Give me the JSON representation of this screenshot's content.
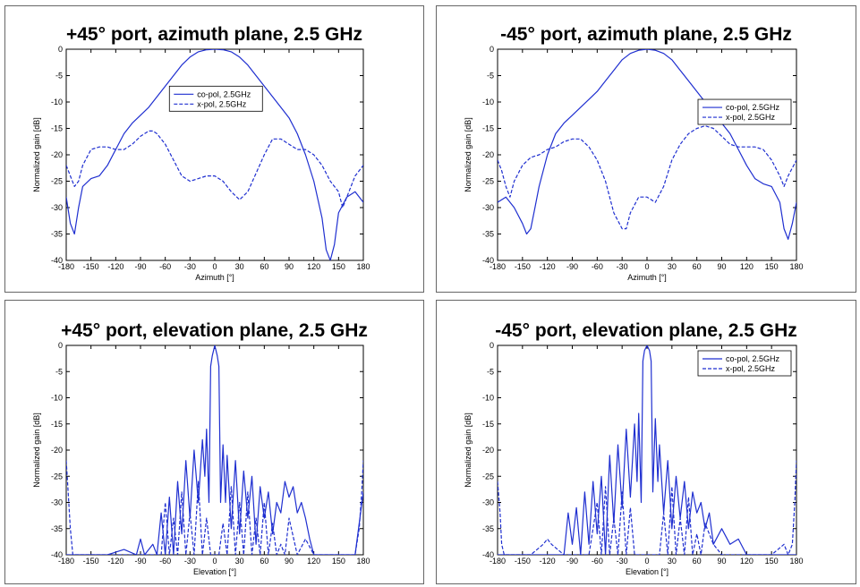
{
  "colors": {
    "series": "#1f2fd0",
    "axis": "#000000",
    "panel_border": "#666666"
  },
  "chart_data": [
    {
      "type": "line",
      "title": "+45° port, azimuth plane, 2.5 GHz",
      "xlabel": "Azimuth [°]",
      "ylabel": "Normalized gain [dB]",
      "xlim": [
        -180,
        180
      ],
      "ylim": [
        -40,
        0
      ],
      "xticks": [
        -180,
        -150,
        -120,
        -90,
        -60,
        -30,
        0,
        30,
        60,
        90,
        120,
        150,
        180
      ],
      "yticks": [
        0,
        -5,
        -10,
        -15,
        -20,
        -25,
        -30,
        -35,
        -40
      ],
      "legend": "upper-center",
      "series": [
        {
          "name": "co-pol, 2.5GHz",
          "style": "solid",
          "x": [
            -180,
            -175,
            -170,
            -165,
            -160,
            -150,
            -140,
            -130,
            -120,
            -110,
            -100,
            -90,
            -80,
            -70,
            -60,
            -50,
            -40,
            -30,
            -20,
            -10,
            0,
            10,
            20,
            30,
            40,
            50,
            60,
            70,
            80,
            90,
            100,
            110,
            120,
            130,
            135,
            140,
            145,
            150,
            160,
            170,
            180
          ],
          "y": [
            -28,
            -33,
            -35,
            -30,
            -26,
            -24.5,
            -24,
            -22,
            -19,
            -16,
            -14,
            -12.5,
            -11,
            -9,
            -7,
            -5,
            -3,
            -1.5,
            -0.5,
            -0.1,
            0,
            -0.1,
            -0.5,
            -1.5,
            -3,
            -5,
            -7,
            -9,
            -11,
            -13,
            -16,
            -20,
            -25,
            -32,
            -38,
            -40,
            -37,
            -31,
            -28,
            -27,
            -29
          ]
        },
        {
          "name": "x-pol, 2.5GHz",
          "style": "dashed",
          "x": [
            -180,
            -175,
            -170,
            -165,
            -160,
            -150,
            -140,
            -130,
            -120,
            -110,
            -100,
            -90,
            -80,
            -75,
            -70,
            -60,
            -50,
            -40,
            -30,
            -20,
            -10,
            0,
            10,
            20,
            30,
            40,
            50,
            60,
            70,
            80,
            90,
            100,
            110,
            120,
            130,
            140,
            150,
            155,
            160,
            170,
            180
          ],
          "y": [
            -22,
            -24,
            -26,
            -25,
            -22,
            -19,
            -18.5,
            -18.5,
            -19,
            -19,
            -18,
            -16.5,
            -15.5,
            -15.5,
            -16,
            -18,
            -21,
            -24,
            -25,
            -24.5,
            -24,
            -24,
            -25,
            -27,
            -28.5,
            -27,
            -23.5,
            -20,
            -17,
            -17,
            -18,
            -19,
            -19,
            -20,
            -22,
            -25,
            -27,
            -30,
            -28,
            -24,
            -22
          ]
        }
      ]
    },
    {
      "type": "line",
      "title": "-45° port, azimuth plane, 2.5 GHz",
      "xlabel": "Azimuth [°]",
      "ylabel": "Normalized gain [dB]",
      "xlim": [
        -180,
        180
      ],
      "ylim": [
        -40,
        0
      ],
      "xticks": [
        -180,
        -150,
        -120,
        -90,
        -60,
        -30,
        0,
        30,
        60,
        90,
        120,
        150,
        180
      ],
      "yticks": [
        0,
        -5,
        -10,
        -15,
        -20,
        -25,
        -30,
        -35,
        -40
      ],
      "legend": "upper-right",
      "series": [
        {
          "name": "co-pol, 2.5GHz",
          "style": "solid",
          "x": [
            -180,
            -170,
            -160,
            -150,
            -145,
            -140,
            -135,
            -130,
            -120,
            -110,
            -100,
            -90,
            -80,
            -70,
            -60,
            -50,
            -40,
            -30,
            -20,
            -10,
            0,
            10,
            20,
            30,
            40,
            50,
            60,
            70,
            80,
            90,
            100,
            110,
            120,
            130,
            140,
            150,
            160,
            165,
            170,
            175,
            180
          ],
          "y": [
            -29,
            -28,
            -30,
            -33,
            -35,
            -34,
            -30,
            -26,
            -20,
            -16,
            -14,
            -12.5,
            -11,
            -9.5,
            -8,
            -6,
            -4,
            -2,
            -0.8,
            -0.2,
            0,
            -0.2,
            -0.8,
            -2,
            -4,
            -6,
            -8,
            -10,
            -12,
            -14,
            -16,
            -19,
            -22,
            -24.5,
            -25.5,
            -26,
            -29,
            -34,
            -36,
            -33,
            -29
          ]
        },
        {
          "name": "x-pol, 2.5GHz",
          "style": "dashed",
          "x": [
            -180,
            -175,
            -170,
            -165,
            -160,
            -150,
            -140,
            -130,
            -120,
            -110,
            -100,
            -90,
            -80,
            -70,
            -60,
            -50,
            -40,
            -30,
            -25,
            -20,
            -10,
            0,
            10,
            20,
            30,
            40,
            50,
            60,
            70,
            80,
            90,
            100,
            110,
            120,
            130,
            140,
            150,
            160,
            165,
            170,
            180
          ],
          "y": [
            -21,
            -23,
            -26,
            -28,
            -25,
            -22,
            -20.5,
            -20,
            -19,
            -18.5,
            -17.5,
            -17,
            -17,
            -18.5,
            -21,
            -25,
            -31,
            -34,
            -34,
            -31,
            -28,
            -28,
            -29,
            -26,
            -21,
            -18,
            -16,
            -15,
            -14.5,
            -15,
            -16.5,
            -18,
            -18.5,
            -18.5,
            -18.5,
            -19,
            -21,
            -24,
            -26,
            -24,
            -21
          ]
        }
      ]
    },
    {
      "type": "line",
      "title": "+45° port, elevation plane, 2.5 GHz",
      "xlabel": "Elevation [°]",
      "ylabel": "Normalized gain [dB]",
      "xlim": [
        -180,
        180
      ],
      "ylim": [
        -40,
        0
      ],
      "xticks": [
        -180,
        -150,
        -120,
        -90,
        -60,
        -30,
        0,
        30,
        60,
        90,
        120,
        150,
        180
      ],
      "yticks": [
        0,
        -5,
        -10,
        -15,
        -20,
        -25,
        -30,
        -35,
        -40
      ],
      "series": [
        {
          "name": "co-pol, 2.5GHz",
          "style": "solid",
          "x": [
            -180,
            -170,
            -150,
            -130,
            -110,
            -95,
            -90,
            -85,
            -75,
            -70,
            -65,
            -60,
            -55,
            -50,
            -45,
            -40,
            -35,
            -30,
            -25,
            -20,
            -15,
            -12,
            -10,
            -7,
            -5,
            -3,
            0,
            3,
            5,
            7,
            10,
            13,
            15,
            20,
            25,
            30,
            35,
            40,
            45,
            50,
            55,
            60,
            65,
            70,
            75,
            80,
            85,
            90,
            95,
            100,
            105,
            110,
            115,
            120,
            130,
            150,
            170,
            180
          ],
          "y": [
            -40,
            -40,
            -40,
            -40,
            -39,
            -40,
            -37,
            -40,
            -38,
            -40,
            -32,
            -40,
            -29,
            -40,
            -26,
            -36,
            -22,
            -33,
            -20,
            -30,
            -18,
            -25,
            -16,
            -30,
            -4,
            -2,
            0,
            -2,
            -4,
            -30,
            -19,
            -30,
            -21,
            -35,
            -22,
            -36,
            -24,
            -33,
            -25,
            -38,
            -27,
            -33,
            -28,
            -36,
            -30,
            -32,
            -26,
            -29,
            -27,
            -32,
            -30,
            -33,
            -37,
            -40,
            -40,
            -40,
            -40,
            -28
          ]
        },
        {
          "name": "x-pol, 2.5GHz",
          "style": "dashed",
          "x": [
            -180,
            -178,
            -175,
            -172,
            -170,
            -165,
            -150,
            -130,
            -100,
            -80,
            -65,
            -60,
            -55,
            -50,
            -45,
            -40,
            -35,
            -30,
            -25,
            -20,
            -15,
            -10,
            -5,
            0,
            5,
            10,
            15,
            20,
            25,
            30,
            35,
            40,
            45,
            50,
            55,
            60,
            65,
            70,
            75,
            80,
            85,
            90,
            100,
            110,
            120,
            150,
            170,
            175,
            178,
            180
          ],
          "y": [
            -22,
            -27,
            -35,
            -40,
            -40,
            -40,
            -40,
            -40,
            -40,
            -40,
            -40,
            -30,
            -40,
            -33,
            -40,
            -28,
            -40,
            -32,
            -40,
            -26,
            -40,
            -33,
            -40,
            -40,
            -40,
            -34,
            -40,
            -27,
            -40,
            -30,
            -40,
            -28,
            -40,
            -33,
            -40,
            -30,
            -40,
            -34,
            -40,
            -38,
            -40,
            -33,
            -40,
            -37,
            -40,
            -40,
            -40,
            -35,
            -28,
            -22
          ]
        }
      ]
    },
    {
      "type": "line",
      "title": "-45° port, elevation plane, 2.5 GHz",
      "xlabel": "Elevation [°]",
      "ylabel": "Normalized gain [dB]",
      "xlim": [
        -180,
        180
      ],
      "ylim": [
        -40,
        0
      ],
      "xticks": [
        -180,
        -150,
        -120,
        -90,
        -60,
        -30,
        0,
        30,
        60,
        90,
        120,
        150,
        180
      ],
      "yticks": [
        0,
        -5,
        -10,
        -15,
        -20,
        -25,
        -30,
        -35,
        -40
      ],
      "legend": "upper-right",
      "series": [
        {
          "name": "co-pol, 2.5GHz",
          "style": "solid",
          "x": [
            -180,
            -170,
            -150,
            -130,
            -110,
            -100,
            -95,
            -90,
            -85,
            -80,
            -75,
            -70,
            -65,
            -60,
            -55,
            -50,
            -45,
            -40,
            -35,
            -30,
            -25,
            -20,
            -15,
            -12,
            -10,
            -7,
            -5,
            -3,
            0,
            3,
            5,
            7,
            10,
            13,
            15,
            20,
            25,
            30,
            35,
            40,
            45,
            50,
            55,
            60,
            65,
            70,
            75,
            80,
            90,
            100,
            110,
            120,
            130,
            150,
            170,
            180
          ],
          "y": [
            -40,
            -40,
            -40,
            -40,
            -40,
            -40,
            -32,
            -38,
            -31,
            -40,
            -28,
            -38,
            -26,
            -36,
            -25,
            -40,
            -21,
            -34,
            -19,
            -31,
            -16,
            -29,
            -15,
            -26,
            -13,
            -30,
            -3,
            -1,
            0,
            -1,
            -3,
            -28,
            -14,
            -26,
            -19,
            -32,
            -22,
            -35,
            -25,
            -33,
            -26,
            -35,
            -28,
            -32,
            -30,
            -35,
            -32,
            -38,
            -35,
            -38,
            -37,
            -40,
            -40,
            -40,
            -40,
            -40
          ]
        },
        {
          "name": "x-pol, 2.5GHz",
          "style": "dashed",
          "x": [
            -180,
            -177,
            -175,
            -172,
            -170,
            -160,
            -140,
            -125,
            -120,
            -115,
            -100,
            -80,
            -70,
            -60,
            -55,
            -50,
            -45,
            -40,
            -35,
            -30,
            -25,
            -20,
            -15,
            -10,
            -5,
            0,
            5,
            10,
            15,
            20,
            25,
            30,
            35,
            40,
            45,
            50,
            55,
            60,
            65,
            70,
            80,
            90,
            100,
            120,
            150,
            165,
            170,
            175,
            178,
            180
          ],
          "y": [
            -26,
            -32,
            -38,
            -40,
            -40,
            -40,
            -40,
            -38,
            -37,
            -38,
            -40,
            -40,
            -40,
            -30,
            -40,
            -27,
            -40,
            -33,
            -40,
            -28,
            -40,
            -31,
            -40,
            -40,
            -40,
            -40,
            -40,
            -40,
            -40,
            -32,
            -40,
            -27,
            -40,
            -33,
            -40,
            -29,
            -40,
            -36,
            -40,
            -34,
            -38,
            -40,
            -40,
            -40,
            -40,
            -38,
            -40,
            -38,
            -30,
            -22
          ]
        }
      ]
    }
  ]
}
